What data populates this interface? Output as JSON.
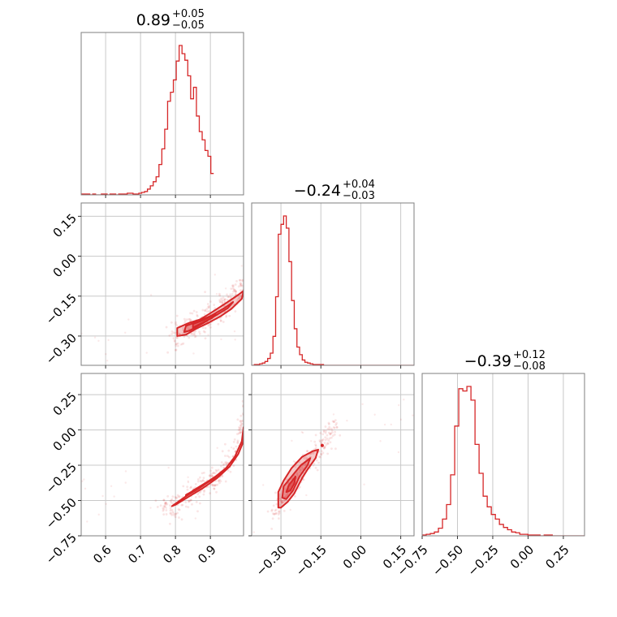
{
  "chart_data": {
    "type": "corner",
    "color": "#d62728",
    "grid": true,
    "params": [
      {
        "id": "p1",
        "range": [
          0.53,
          0.995
        ],
        "ticks": [
          0.6,
          0.7,
          0.8,
          0.9
        ],
        "tick_labels": [
          "0.6",
          "0.7",
          "0.8",
          "0.9"
        ]
      },
      {
        "id": "p2",
        "range": [
          -0.41,
          0.2
        ],
        "ticks": [
          -0.3,
          -0.15,
          0.0,
          0.15
        ],
        "tick_labels": [
          "−0.30",
          "−0.15",
          "0.00",
          "0.15"
        ]
      },
      {
        "id": "p3",
        "range": [
          -0.75,
          0.4
        ],
        "ticks": [
          -0.75,
          -0.5,
          -0.25,
          0.0,
          0.25
        ],
        "tick_labels": [
          "−0.75",
          "−0.50",
          "−0.25",
          "0.00",
          "0.25"
        ]
      }
    ],
    "titles": [
      {
        "main": "0.89",
        "plus": "+0.05",
        "minus": "−0.05"
      },
      {
        "main": "−0.24",
        "plus": "+0.04",
        "minus": "−0.03"
      },
      {
        "main": "−0.39",
        "plus": "+0.12",
        "minus": "−0.08"
      }
    ],
    "histograms": [
      {
        "param": 0,
        "edges_start": 0.53,
        "bin_width": 0.00825,
        "counts": [
          1,
          1,
          1,
          0,
          1,
          0,
          0,
          1,
          1,
          0,
          1,
          1,
          0,
          1,
          1,
          1,
          2,
          2,
          1,
          1,
          2,
          3,
          4,
          7,
          11,
          16,
          22,
          37,
          56,
          80,
          114,
          125,
          140,
          163,
          182,
          172,
          164,
          145,
          117,
          131,
          96,
          77,
          67,
          54,
          47,
          26
        ]
      },
      {
        "param": 1,
        "edges_start": -0.41,
        "bin_width": 0.01,
        "counts": [
          0,
          1,
          1,
          2,
          3,
          5,
          9,
          16,
          38,
          90,
          172,
          185,
          196,
          180,
          136,
          85,
          48,
          24,
          14,
          7,
          4,
          3,
          2,
          1,
          1,
          1,
          1,
          0,
          0,
          0,
          0,
          0,
          0,
          0,
          0,
          0,
          0,
          0,
          0,
          0,
          0,
          0,
          0,
          0,
          0,
          0,
          0,
          0,
          0,
          0,
          0,
          0,
          0,
          0,
          0,
          0,
          0,
          0,
          0,
          0,
          0
        ]
      },
      {
        "param": 2,
        "edges_start": -0.75,
        "bin_width": 0.0288,
        "counts": [
          1,
          2,
          3,
          5,
          10,
          22,
          41,
          80,
          144,
          193,
          190,
          196,
          178,
          120,
          82,
          52,
          38,
          28,
          22,
          15,
          11,
          8,
          5,
          4,
          2,
          2,
          1,
          1,
          1,
          0,
          1,
          1,
          0,
          0,
          0,
          0,
          0,
          0,
          0,
          0
        ]
      }
    ],
    "pairs": [
      {
        "x_param": 0,
        "y_param": 1,
        "ridge": [
          [
            0.79,
            -0.295
          ],
          [
            0.83,
            -0.275
          ],
          [
            0.86,
            -0.258
          ],
          [
            0.89,
            -0.235
          ],
          [
            0.92,
            -0.208
          ],
          [
            0.95,
            -0.175
          ],
          [
            0.975,
            -0.145
          ],
          [
            0.995,
            -0.115
          ]
        ],
        "contours": [
          [
            [
              0.805,
              -0.27
            ],
            [
              0.84,
              -0.25
            ],
            [
              0.87,
              -0.238
            ],
            [
              0.905,
              -0.21
            ],
            [
              0.945,
              -0.176
            ],
            [
              0.98,
              -0.145
            ],
            [
              0.995,
              -0.13
            ],
            [
              0.99,
              -0.16
            ],
            [
              0.96,
              -0.198
            ],
            [
              0.93,
              -0.225
            ],
            [
              0.895,
              -0.25
            ],
            [
              0.86,
              -0.272
            ],
            [
              0.83,
              -0.295
            ],
            [
              0.805,
              -0.3
            ]
          ],
          [
            [
              0.83,
              -0.262
            ],
            [
              0.86,
              -0.247
            ],
            [
              0.9,
              -0.225
            ],
            [
              0.94,
              -0.195
            ],
            [
              0.965,
              -0.172
            ],
            [
              0.95,
              -0.195
            ],
            [
              0.91,
              -0.227
            ],
            [
              0.875,
              -0.255
            ],
            [
              0.84,
              -0.28
            ],
            [
              0.825,
              -0.285
            ]
          ],
          [
            [
              0.85,
              -0.255
            ],
            [
              0.88,
              -0.24
            ],
            [
              0.915,
              -0.218
            ],
            [
              0.905,
              -0.232
            ],
            [
              0.87,
              -0.255
            ],
            [
              0.85,
              -0.268
            ]
          ]
        ]
      },
      {
        "x_param": 0,
        "y_param": 2,
        "ridge": [
          [
            0.76,
            -0.56
          ],
          [
            0.8,
            -0.53
          ],
          [
            0.84,
            -0.47
          ],
          [
            0.88,
            -0.4
          ],
          [
            0.92,
            -0.32
          ],
          [
            0.95,
            -0.24
          ],
          [
            0.975,
            -0.12
          ],
          [
            0.99,
            0.05
          ],
          [
            0.995,
            0.2
          ]
        ],
        "contours": [
          [
            [
              0.79,
              -0.54
            ],
            [
              0.83,
              -0.47
            ],
            [
              0.87,
              -0.41
            ],
            [
              0.91,
              -0.34
            ],
            [
              0.945,
              -0.27
            ],
            [
              0.97,
              -0.19
            ],
            [
              0.99,
              -0.08
            ],
            [
              0.995,
              0.02
            ],
            [
              0.995,
              -0.08
            ],
            [
              0.98,
              -0.17
            ],
            [
              0.955,
              -0.26
            ],
            [
              0.92,
              -0.34
            ],
            [
              0.88,
              -0.41
            ],
            [
              0.84,
              -0.47
            ],
            [
              0.8,
              -0.53
            ]
          ],
          [
            [
              0.83,
              -0.46
            ],
            [
              0.87,
              -0.405
            ],
            [
              0.91,
              -0.345
            ],
            [
              0.94,
              -0.285
            ],
            [
              0.93,
              -0.305
            ],
            [
              0.89,
              -0.37
            ],
            [
              0.85,
              -0.43
            ],
            [
              0.83,
              -0.47
            ]
          ]
        ]
      },
      {
        "x_param": 1,
        "y_param": 2,
        "ridge": [
          [
            -0.33,
            -0.6
          ],
          [
            -0.3,
            -0.5
          ],
          [
            -0.27,
            -0.42
          ],
          [
            -0.24,
            -0.33
          ],
          [
            -0.21,
            -0.26
          ],
          [
            -0.17,
            -0.16
          ],
          [
            -0.13,
            -0.07
          ],
          [
            -0.1,
            0.02
          ]
        ],
        "contours": [
          [
            [
              -0.31,
              -0.55
            ],
            [
              -0.31,
              -0.44
            ],
            [
              -0.29,
              -0.36
            ],
            [
              -0.26,
              -0.27
            ],
            [
              -0.22,
              -0.19
            ],
            [
              -0.18,
              -0.15
            ],
            [
              -0.16,
              -0.14
            ],
            [
              -0.17,
              -0.2
            ],
            [
              -0.2,
              -0.28
            ],
            [
              -0.22,
              -0.34
            ],
            [
              -0.25,
              -0.45
            ],
            [
              -0.275,
              -0.51
            ],
            [
              -0.3,
              -0.55
            ]
          ],
          [
            [
              -0.295,
              -0.48
            ],
            [
              -0.29,
              -0.4
            ],
            [
              -0.26,
              -0.33
            ],
            [
              -0.225,
              -0.25
            ],
            [
              -0.19,
              -0.2
            ],
            [
              -0.2,
              -0.25
            ],
            [
              -0.23,
              -0.33
            ],
            [
              -0.255,
              -0.43
            ],
            [
              -0.28,
              -0.49
            ]
          ],
          [
            [
              -0.28,
              -0.44
            ],
            [
              -0.27,
              -0.39
            ],
            [
              -0.245,
              -0.33
            ],
            [
              -0.25,
              -0.38
            ],
            [
              -0.265,
              -0.43
            ]
          ]
        ],
        "outlier": [
          -0.145,
          -0.11
        ]
      }
    ]
  }
}
